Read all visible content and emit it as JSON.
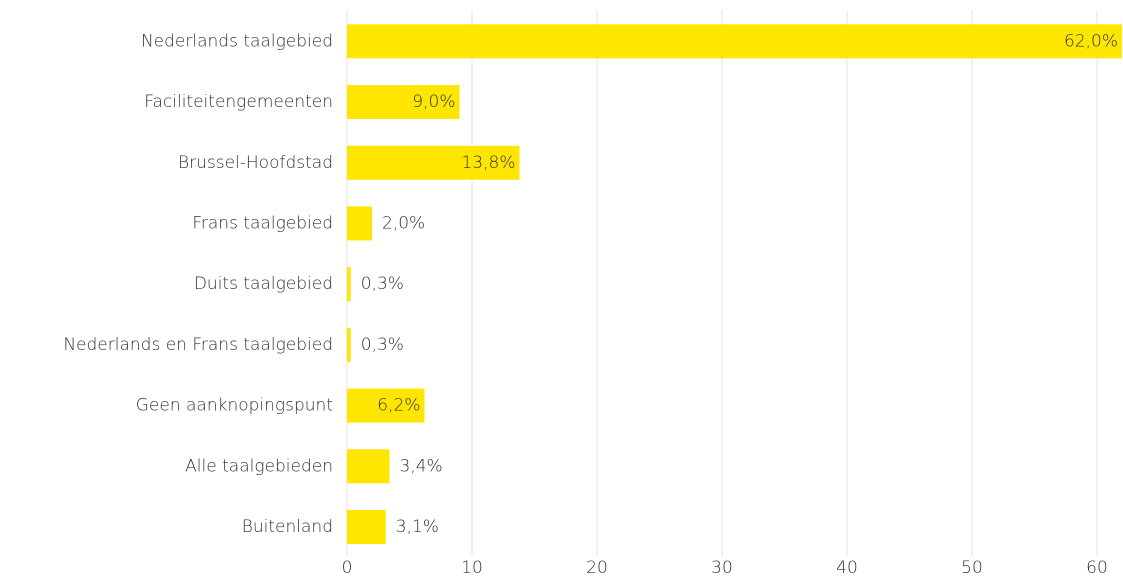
{
  "chart_data": {
    "type": "hbar",
    "categories": [
      "Nederlands taalgebied",
      "Faciliteitengemeenten",
      "Brussel-Hoofdstad",
      "Frans taalgebied",
      "Duits taalgebied",
      "Nederlands en Frans taalgebied",
      "Geen aanknopingspunt",
      "Alle taalgebieden",
      "Buitenland"
    ],
    "values": [
      62.0,
      9.0,
      13.8,
      2.0,
      0.3,
      0.3,
      6.2,
      3.4,
      3.1
    ],
    "value_labels": [
      "62,0%",
      "9,0%",
      "13,8%",
      "2,0%",
      "0,3%",
      "0,3%",
      "6,2%",
      "3,4%",
      "3,1%"
    ],
    "color": "#ffe600",
    "xlim": [
      0,
      62
    ],
    "xticks": [
      0,
      10,
      20,
      30,
      40,
      50,
      60
    ],
    "grid": true
  }
}
